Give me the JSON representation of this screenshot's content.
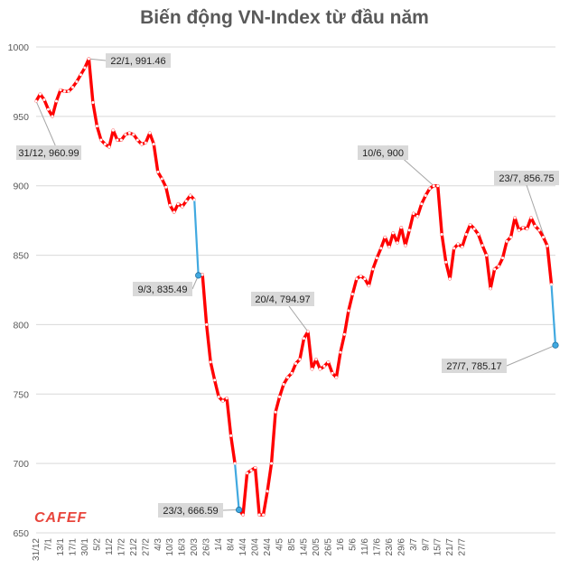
{
  "brand": {
    "logo_text": "CAFEF"
  },
  "chart_data": {
    "type": "line",
    "title": "Biến động VN-Index từ đầu năm",
    "ylim": [
      650,
      1000
    ],
    "yticks": [
      650,
      700,
      750,
      800,
      850,
      900,
      950,
      1000
    ],
    "grid": true,
    "colors": {
      "main": "#ff0000",
      "highlight": "#41a9e0",
      "marker_fill": "#ffffff",
      "highlight_marker": "#41a9e0"
    },
    "x_tick_labels": [
      "31/12",
      "7/1",
      "13/1",
      "17/1",
      "30/1",
      "5/2",
      "11/2",
      "17/2",
      "21/2",
      "27/2",
      "4/3",
      "10/3",
      "16/3",
      "20/3",
      "26/3",
      "1/4",
      "8/4",
      "14/4",
      "20/4",
      "24/4",
      "4/5",
      "8/5",
      "14/5",
      "20/5",
      "26/5",
      "1/6",
      "5/6",
      "11/6",
      "17/6",
      "23/6",
      "29/6",
      "3/7",
      "9/7",
      "15/7",
      "21/7",
      "27/7"
    ],
    "tick_step": 3,
    "values": [
      960.99,
      966,
      962,
      955,
      950,
      961,
      969,
      968,
      968,
      971,
      975,
      980,
      985,
      991.46,
      960,
      943,
      933,
      930,
      928,
      940,
      933,
      933,
      937,
      938,
      937,
      933,
      930,
      931,
      938,
      930,
      910,
      905,
      899,
      886,
      881,
      887,
      885,
      889,
      893,
      890,
      835.49,
      836,
      800,
      773,
      760,
      748,
      745,
      747,
      720,
      700,
      666.59,
      663,
      693,
      695,
      697,
      663,
      663,
      680,
      700,
      737,
      748,
      757,
      762,
      765,
      772,
      775,
      790,
      794.97,
      768,
      775,
      768,
      770,
      773,
      765,
      762,
      780,
      793,
      810,
      822,
      833,
      835,
      833,
      828,
      840,
      848,
      855,
      863,
      856,
      866,
      859,
      870,
      857,
      868,
      880,
      878,
      887,
      893,
      898,
      900,
      900,
      865,
      845,
      833,
      855,
      858,
      856,
      865,
      872,
      869,
      865,
      857,
      850,
      826,
      840,
      842,
      848,
      860,
      863,
      877,
      868,
      870,
      869,
      877,
      871,
      868,
      863,
      856.75,
      829,
      785.17
    ],
    "highlight_segments": [
      [
        39,
        40
      ],
      [
        49,
        50
      ],
      [
        127,
        128
      ]
    ],
    "annotations": [
      {
        "label": "31/12, 960.99",
        "index": 0
      },
      {
        "label": "22/1, 991.46",
        "index": 13
      },
      {
        "label": "9/3, 835.49",
        "index": 40
      },
      {
        "label": "23/3, 666.59",
        "index": 50
      },
      {
        "label": "20/4, 794.97",
        "index": 67
      },
      {
        "label": "10/6, 900",
        "index": 98
      },
      {
        "label": "23/7, 856.75",
        "index": 126
      },
      {
        "label": "27/7, 785.17",
        "index": 128
      }
    ]
  }
}
